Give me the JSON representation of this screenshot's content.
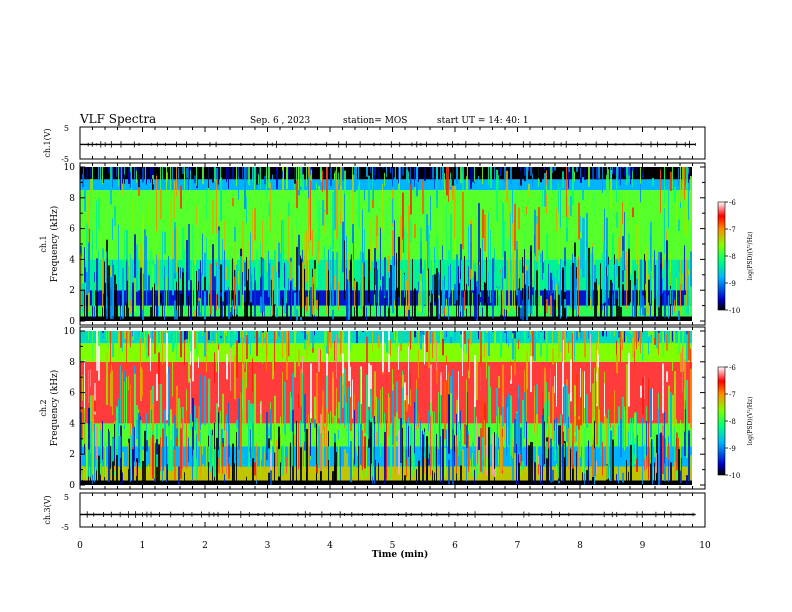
{
  "header": {
    "title": "VLF Spectra",
    "date": "Sep. 6 , 2023",
    "station": "station= MOS",
    "start_ut": "start  UT =   14: 40: 1"
  },
  "chart_data": [
    {
      "type": "line",
      "panel": "ch1-waveform",
      "ylabel": "ch.1(V)",
      "ylim": [
        -5,
        5
      ],
      "yticks": [
        "5",
        "-5"
      ],
      "x": [
        0,
        9.85
      ],
      "values": [
        -0.5,
        -0.5
      ]
    },
    {
      "type": "heatmap",
      "panel": "ch1-spectrogram",
      "ylabel": "ch.1\nFrequency (kHz)",
      "ylim": [
        0,
        10
      ],
      "yticks": [
        "0",
        "2",
        "4",
        "6",
        "8",
        "10"
      ],
      "colorbar": {
        "label": "log(PSD)(V²/Hz)",
        "range": [
          -10,
          -6
        ],
        "ticks": [
          "-6",
          "-7",
          "-8",
          "-9",
          "-10"
        ]
      },
      "bands": [
        {
          "from_khz": 0.0,
          "to_khz": 0.3,
          "level": -10
        },
        {
          "from_khz": 0.3,
          "to_khz": 1.0,
          "level": -8
        },
        {
          "from_khz": 1.0,
          "to_khz": 2.0,
          "level": -9.5
        },
        {
          "from_khz": 2.0,
          "to_khz": 4.0,
          "level": -8.3
        },
        {
          "from_khz": 4.0,
          "to_khz": 8.5,
          "level": -7.8
        },
        {
          "from_khz": 8.5,
          "to_khz": 9.2,
          "level": -8.8
        },
        {
          "from_khz": 9.2,
          "to_khz": 10.0,
          "level": -10
        }
      ]
    },
    {
      "type": "heatmap",
      "panel": "ch2-spectrogram",
      "ylabel": "ch.2\nFrequency (kHz)",
      "ylim": [
        0,
        10
      ],
      "yticks": [
        "0",
        "2",
        "4",
        "6",
        "8",
        "10"
      ],
      "colorbar": {
        "label": "log(PSD)(V²/Hz)",
        "range": [
          -10,
          -6
        ],
        "ticks": [
          "-6",
          "-7",
          "-8",
          "-9",
          "-10"
        ]
      },
      "bands": [
        {
          "from_khz": 0.0,
          "to_khz": 0.3,
          "level": -10
        },
        {
          "from_khz": 0.3,
          "to_khz": 1.2,
          "level": -7.3
        },
        {
          "from_khz": 1.2,
          "to_khz": 2.5,
          "level": -8.8
        },
        {
          "from_khz": 2.5,
          "to_khz": 4.0,
          "level": -7.8
        },
        {
          "from_khz": 4.0,
          "to_khz": 8.0,
          "level": -6.4
        },
        {
          "from_khz": 8.0,
          "to_khz": 9.2,
          "level": -7.6
        },
        {
          "from_khz": 9.2,
          "to_khz": 10.0,
          "level": -8.5
        }
      ]
    },
    {
      "type": "line",
      "panel": "ch3-waveform",
      "ylabel": "ch.3(V)",
      "ylim": [
        -5,
        5
      ],
      "yticks": [
        "5",
        "-5"
      ],
      "x": [
        0,
        9.85
      ],
      "values": [
        -1.5,
        -1.5
      ]
    }
  ],
  "xaxis": {
    "label": "Time (min)",
    "range": [
      0,
      10
    ],
    "ticks": [
      "0",
      "1",
      "2",
      "3",
      "4",
      "5",
      "6",
      "7",
      "8",
      "9",
      "10"
    ]
  },
  "colors": {
    "frame": "#000000",
    "background": "#ffffff"
  }
}
